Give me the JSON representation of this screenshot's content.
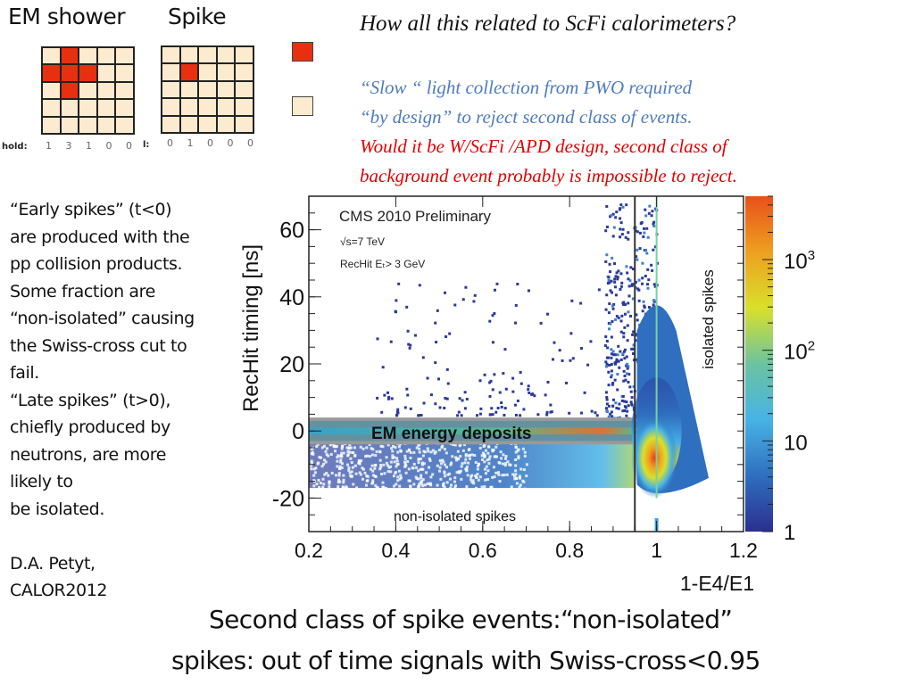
{
  "diagram": {
    "em_shower_title": "EM shower",
    "spike_title": "Spike",
    "em_shower_grid": [
      [
        0,
        1,
        0,
        0,
        0
      ],
      [
        1,
        1,
        1,
        0,
        0
      ],
      [
        0,
        1,
        0,
        0,
        0
      ],
      [
        0,
        0,
        0,
        0,
        0
      ],
      [
        0,
        0,
        0,
        0,
        0
      ]
    ],
    "spike_grid": [
      [
        0,
        0,
        0,
        0,
        0
      ],
      [
        0,
        1,
        0,
        0,
        0
      ],
      [
        0,
        0,
        0,
        0,
        0
      ],
      [
        0,
        0,
        0,
        0,
        0
      ],
      [
        0,
        0,
        0,
        0,
        0
      ]
    ],
    "em_threshold_label": "hold:",
    "em_threshold_counts": "1 3 1 0 0",
    "spike_threshold_label": "l:",
    "spike_threshold_counts": "0 1 0 0 0",
    "legend_colors": {
      "hit": "#e83010",
      "empty": "#fdebd0"
    }
  },
  "question": "How all this related to ScFi calorimeters?",
  "notes": {
    "blue_line1": "“Slow “ light collection from PWO  required",
    "blue_line2": "“by design” to reject second class of events.",
    "red_line1": "Would it be W/ScFi /APD design, second class of",
    "red_line2": "background event probably is impossible to reject."
  },
  "side_text": {
    "lines": [
      "“Early spikes” (t<0)",
      "are produced with the",
      "pp collision products.",
      "Some fraction are",
      "“non-isolated” causing",
      "the Swiss-cross cut to",
      "fail.",
      "“Late spikes” (t>0),",
      "chiefly produced by",
      "neutrons, are more",
      "likely to",
      "be isolated.",
      "",
      "D.A. Petyt,",
      "CALOR2012"
    ]
  },
  "caption": {
    "line1": "Second class of spike events:“non-isolated”",
    "line2": "spikes:  out of time signals with Swiss-cross<0.95"
  },
  "chart_data": {
    "type": "heatmap",
    "title": "CMS 2010 Preliminary",
    "annotations": [
      "√s=7 TeV",
      "RecHit E_T> 3 GeV",
      "EM energy deposits",
      "non-isolated spikes",
      "isolated spikes"
    ],
    "xlabel": "1-E4/E1",
    "ylabel": "RecHit timing [ns]",
    "xlim": [
      0.2,
      1.2
    ],
    "ylim": [
      -30,
      70
    ],
    "xticks": [
      0.2,
      0.4,
      0.6,
      0.8,
      1,
      1.2
    ],
    "xtick_labels": [
      "0.2",
      "0.4",
      "0.6",
      "0.8",
      "1",
      "1.2"
    ],
    "yticks": [
      -20,
      0,
      20,
      40,
      60
    ],
    "ytick_labels": [
      "-20",
      "0",
      "20",
      "40",
      "60"
    ],
    "cut_line_x": 0.95,
    "colorbar": {
      "scale": "log",
      "range": [
        1,
        5000
      ],
      "ticks": [
        1,
        10,
        100,
        1000
      ],
      "tick_labels": [
        "1",
        "10",
        "10^2",
        "10^3"
      ],
      "colors": [
        "#2b2f8f",
        "#2f6fbf",
        "#47b3e6",
        "#6cc3a0",
        "#d9e02a",
        "#eea020",
        "#e8501a"
      ]
    },
    "regions": [
      {
        "name": "EM energy deposits band",
        "x": [
          0.2,
          0.95
        ],
        "y_center": 0,
        "y_halfwidth": 3,
        "peak_x": 0.9
      },
      {
        "name": "non-isolated spikes band",
        "x": [
          0.2,
          0.95
        ],
        "y": [
          -17,
          -3
        ]
      },
      {
        "name": "isolated spikes column",
        "x_center": 1.0,
        "y": [
          -25,
          70
        ],
        "peak_y": -12
      }
    ],
    "grid": false
  }
}
